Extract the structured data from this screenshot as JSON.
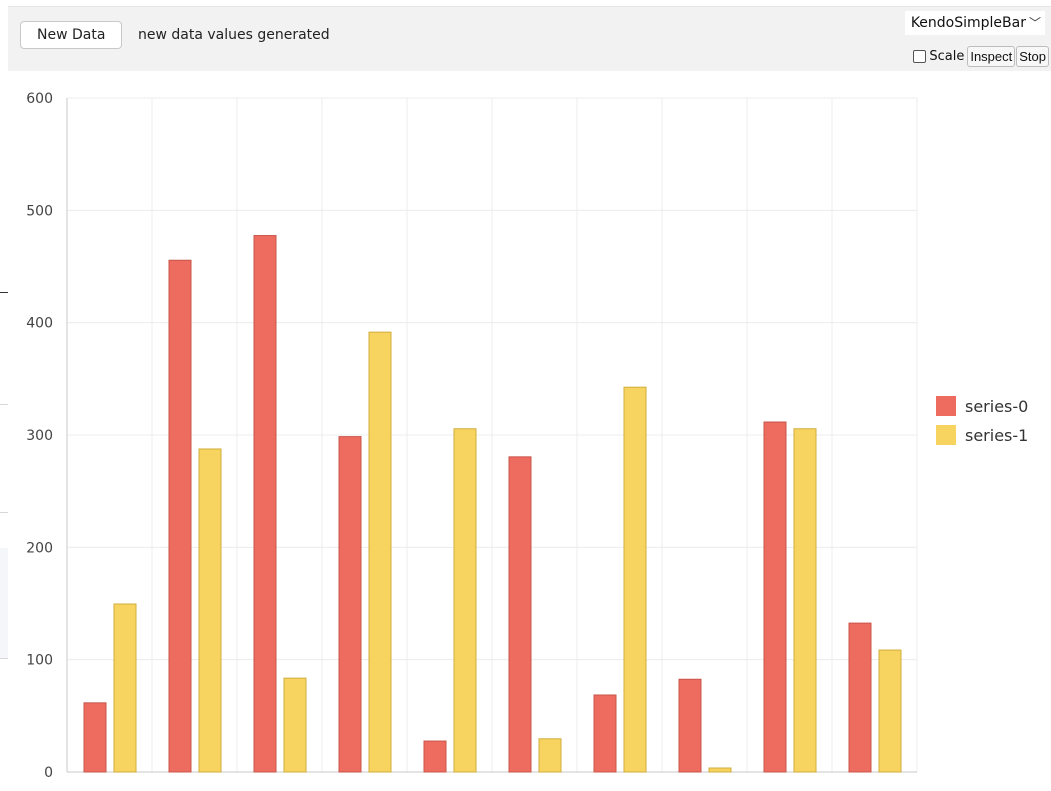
{
  "toolbar": {
    "new_data_label": "New Data",
    "status": "new data values generated",
    "chart_type": "KendoSimpleBar",
    "scale_label": "Scale",
    "inspect_label": "Inspect",
    "stop_label": "Stop"
  },
  "colors": {
    "series_0": "#ee6b5f",
    "series_0_border": "#c9544a",
    "series_1": "#f7d35f",
    "series_1_border": "#d1ad3c",
    "grid": "#ececec",
    "axis": "#c8c8c8"
  },
  "chart_data": {
    "type": "bar",
    "categories": [
      "",
      "",
      "",
      "",
      "",
      "",
      "",
      "",
      "",
      ""
    ],
    "series": [
      {
        "name": "series-0",
        "values": [
          62,
          456,
          478,
          299,
          28,
          281,
          69,
          83,
          312,
          133
        ]
      },
      {
        "name": "series-1",
        "values": [
          150,
          288,
          84,
          392,
          306,
          30,
          343,
          4,
          306,
          109
        ]
      }
    ],
    "ylim": [
      0,
      600
    ],
    "yticks": [
      0,
      100,
      200,
      300,
      400,
      500,
      600
    ],
    "grid": true,
    "legend": "right"
  }
}
